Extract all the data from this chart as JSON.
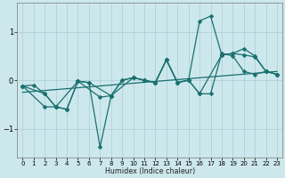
{
  "xlabel": "Humidex (Indice chaleur)",
  "ylabel": "",
  "bg_color": "#cde8ec",
  "grid_color": "#a8cdd4",
  "line_color": "#1a7070",
  "xlim": [
    -0.5,
    23.5
  ],
  "ylim": [
    -1.6,
    1.6
  ],
  "yticks": [
    -1,
    0,
    1
  ],
  "xticks": [
    0,
    1,
    2,
    3,
    4,
    5,
    6,
    7,
    8,
    9,
    10,
    11,
    12,
    13,
    14,
    15,
    16,
    17,
    18,
    19,
    20,
    21,
    22,
    23
  ],
  "series": [
    {
      "x": [
        0,
        1,
        2,
        3,
        4,
        5,
        6,
        7,
        8,
        9,
        10,
        11,
        12,
        13,
        14,
        15,
        16,
        17,
        18,
        19,
        20,
        21,
        22,
        23
      ],
      "y": [
        -0.12,
        -0.1,
        -0.28,
        -0.55,
        -0.6,
        -0.02,
        -0.05,
        -1.38,
        -0.32,
        0.0,
        0.05,
        0.0,
        -0.05,
        0.42,
        -0.05,
        0.0,
        -0.28,
        -0.28,
        0.55,
        0.5,
        0.18,
        0.12,
        0.18,
        0.12
      ]
    },
    {
      "x": [
        0,
        2,
        3,
        5,
        6,
        8,
        9,
        10,
        11,
        12,
        13,
        14,
        15,
        16,
        17,
        18,
        19,
        20,
        21,
        22,
        23
      ],
      "y": [
        -0.12,
        -0.28,
        -0.55,
        -0.02,
        -0.05,
        -0.32,
        0.0,
        0.05,
        0.0,
        -0.05,
        0.42,
        -0.05,
        0.0,
        1.22,
        1.32,
        0.52,
        0.55,
        0.52,
        0.48,
        0.18,
        0.12
      ]
    },
    {
      "x": [
        0,
        2,
        3,
        4,
        5,
        7,
        8,
        10,
        11,
        12,
        13,
        14,
        15,
        16,
        18,
        19,
        20,
        21,
        22,
        23
      ],
      "y": [
        -0.12,
        -0.55,
        -0.55,
        -0.6,
        -0.02,
        -0.35,
        -0.32,
        0.05,
        0.0,
        -0.05,
        0.42,
        -0.05,
        0.0,
        -0.28,
        0.52,
        0.55,
        0.65,
        0.5,
        0.18,
        0.12
      ]
    }
  ],
  "trend": {
    "x": [
      0,
      23
    ],
    "y": [
      -0.25,
      0.18
    ]
  }
}
